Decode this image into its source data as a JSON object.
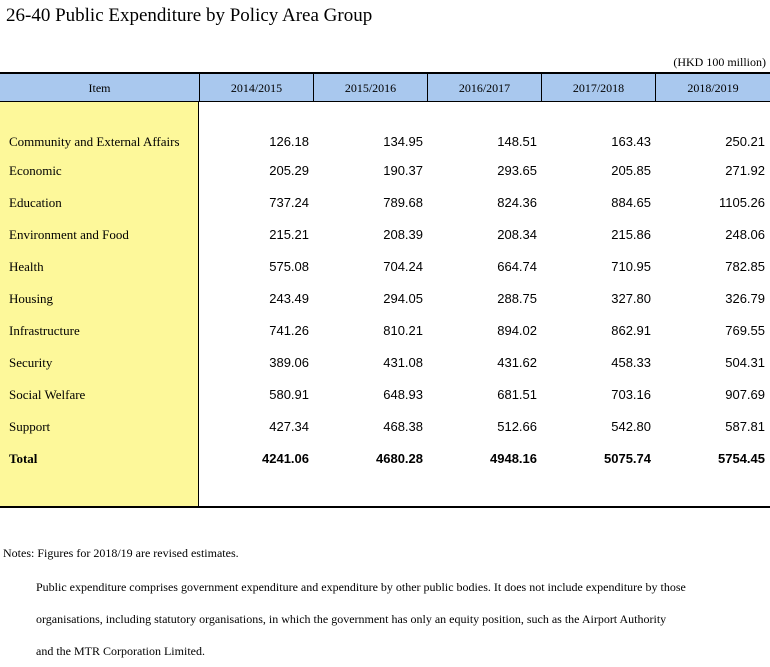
{
  "title": "26-40  Public Expenditure by Policy Area Group",
  "unit": "(HKD 100 million)",
  "table": {
    "headers": [
      "Item",
      "2014/2015",
      "2015/2016",
      "2016/2017",
      "2017/2018",
      "2018/2019"
    ],
    "rows": [
      {
        "label": "Community and External Affairs",
        "values": [
          "126.18",
          "134.95",
          "148.51",
          "163.43",
          "250.21"
        ]
      },
      {
        "label": "Economic",
        "values": [
          "205.29",
          "190.37",
          "293.65",
          "205.85",
          "271.92"
        ]
      },
      {
        "label": "Education",
        "values": [
          "737.24",
          "789.68",
          "824.36",
          "884.65",
          "1105.26"
        ]
      },
      {
        "label": "Environment and Food",
        "values": [
          "215.21",
          "208.39",
          "208.34",
          "215.86",
          "248.06"
        ]
      },
      {
        "label": "Health",
        "values": [
          "575.08",
          "704.24",
          "664.74",
          "710.95",
          "782.85"
        ]
      },
      {
        "label": "Housing",
        "values": [
          "243.49",
          "294.05",
          "288.75",
          "327.80",
          "326.79"
        ]
      },
      {
        "label": "Infrastructure",
        "values": [
          "741.26",
          "810.21",
          "894.02",
          "862.91",
          "769.55"
        ]
      },
      {
        "label": "Security",
        "values": [
          "389.06",
          "431.08",
          "431.62",
          "458.33",
          "504.31"
        ]
      },
      {
        "label": "Social Welfare",
        "values": [
          "580.91",
          "648.93",
          "681.51",
          "703.16",
          "907.69"
        ]
      },
      {
        "label": "Support",
        "values": [
          "427.34",
          "468.38",
          "512.66",
          "542.80",
          "587.81"
        ]
      },
      {
        "label": "Total",
        "values": [
          "4241.06",
          "4680.28",
          "4948.16",
          "5075.74",
          "5754.45"
        ]
      }
    ]
  },
  "notes": {
    "first": "Notes: Figures for 2018/19 are revised estimates.",
    "lines": [
      "Public expenditure comprises government expenditure and expenditure by other public bodies. It does not include expenditure by those",
      "organisations, including statutory organisations, in which the government has only an equity position, such as the Airport Authority",
      "and the MTR Corporation Limited."
    ]
  }
}
